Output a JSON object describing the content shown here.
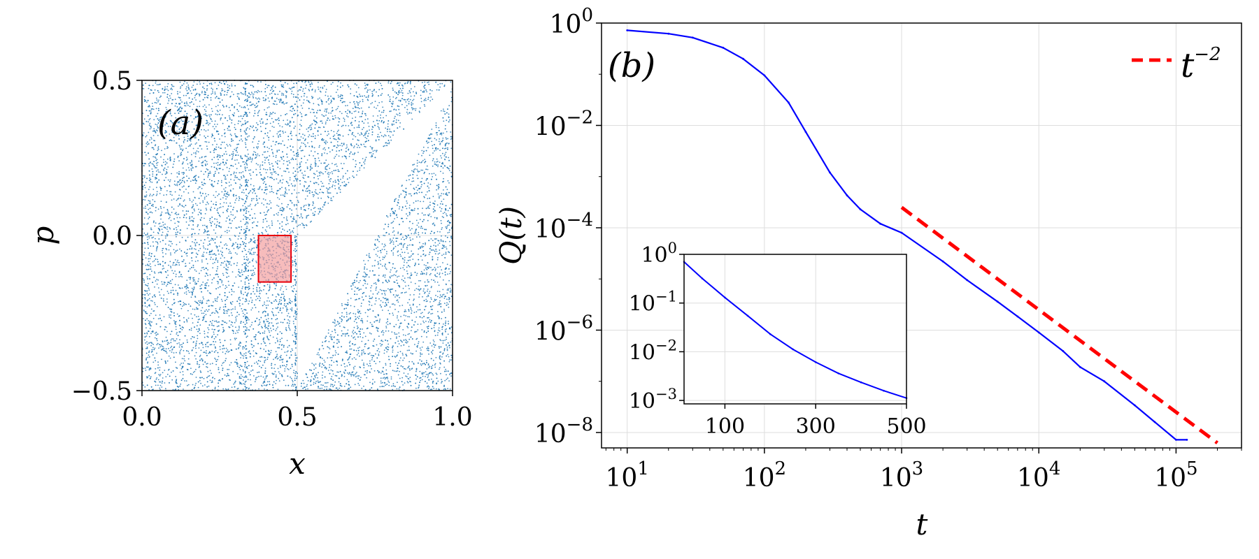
{
  "chart_data": [
    {
      "panel": "(a)",
      "type": "scatter",
      "xlabel": "x",
      "ylabel": "p",
      "xlim": [
        0.0,
        1.0
      ],
      "ylim": [
        -0.5,
        0.5
      ],
      "xticks": [
        "0.0",
        "0.5",
        "1.0"
      ],
      "yticks": [
        "−0.5",
        "0.0",
        "0.5"
      ],
      "grid": true,
      "point_color": "#1f77b4",
      "point_count_approx": 9000,
      "empty_region": {
        "description": "wedge free of points",
        "vertices": [
          [
            0.5,
            -0.5
          ],
          [
            0.5,
            0.0
          ],
          [
            0.993,
            0.493
          ],
          [
            1.0,
            0.48
          ]
        ]
      },
      "highlight_box": {
        "x": [
          0.375,
          0.48
        ],
        "y": [
          -0.15,
          0.0
        ],
        "fill": "#f4a0a0",
        "stroke": "#e8000b"
      }
    },
    {
      "panel": "(b)",
      "type": "line",
      "xlabel": "t",
      "ylabel": "Q(t)",
      "xscale": "log",
      "yscale": "log",
      "xlim": [
        6.5,
        300000
      ],
      "ylim": [
        5e-09,
        1
      ],
      "xticks": [
        {
          "base": "10",
          "exp": "1",
          "value": 10
        },
        {
          "base": "10",
          "exp": "2",
          "value": 100
        },
        {
          "base": "10",
          "exp": "3",
          "value": 1000
        },
        {
          "base": "10",
          "exp": "4",
          "value": 10000
        },
        {
          "base": "10",
          "exp": "5",
          "value": 100000
        }
      ],
      "yticks": [
        {
          "base": "10",
          "exp": "0",
          "value": 1
        },
        {
          "base": "10",
          "exp": "−2",
          "value": 0.01
        },
        {
          "base": "10",
          "exp": "−4",
          "value": 0.0001
        },
        {
          "base": "10",
          "exp": "−6",
          "value": 1e-06
        },
        {
          "base": "10",
          "exp": "−8",
          "value": 1e-08
        }
      ],
      "grid": true,
      "series": [
        {
          "color": "#0000ff",
          "x": [
            10,
            20,
            30,
            50,
            70,
            100,
            150,
            200,
            300,
            400,
            500,
            700,
            1000,
            2000,
            3000,
            5000,
            7000,
            10000,
            15000,
            20000,
            30000,
            50000,
            70000,
            100000,
            120000
          ],
          "y": [
            0.72,
            0.62,
            0.52,
            0.33,
            0.2,
            0.095,
            0.028,
            0.0075,
            0.0012,
            0.00043,
            0.00023,
            0.00012,
            8e-05,
            2.2e-05,
            9.5e-06,
            3.6e-06,
            1.85e-06,
            9e-07,
            3.9e-07,
            1.9e-07,
            1e-07,
            3.4e-08,
            1.6e-08,
            7.2e-09,
            7.2e-09
          ]
        },
        {
          "name": "t⁻²",
          "color": "#ff0000",
          "dash": "dashed",
          "x": [
            1000,
            200000
          ],
          "y": [
            0.00025,
            6.25e-09
          ]
        }
      ],
      "legend": {
        "label_base": "t",
        "label_exp": "−2",
        "position": "upper right",
        "color": "#ff0000"
      },
      "inset": {
        "type": "line",
        "xscale": "linear",
        "yscale": "log",
        "xlim": [
          10,
          500
        ],
        "ylim": [
          0.00085,
          1
        ],
        "xticks": [
          "100",
          "300",
          "500"
        ],
        "yticks": [
          {
            "base": "10",
            "exp": "0",
            "value": 1
          },
          {
            "base": "10",
            "exp": "−1",
            "value": 0.1
          },
          {
            "base": "10",
            "exp": "−2",
            "value": 0.01
          },
          {
            "base": "10",
            "exp": "−3",
            "value": 0.001
          }
        ],
        "grid": true,
        "series": [
          {
            "color": "#0000ff",
            "x": [
              10,
              50,
              100,
              150,
              200,
              250,
              300,
              350,
              400,
              450,
              500
            ],
            "y": [
              0.7,
              0.32,
              0.13,
              0.055,
              0.023,
              0.0112,
              0.0061,
              0.0036,
              0.00235,
              0.00158,
              0.00112
            ]
          }
        ]
      }
    }
  ]
}
